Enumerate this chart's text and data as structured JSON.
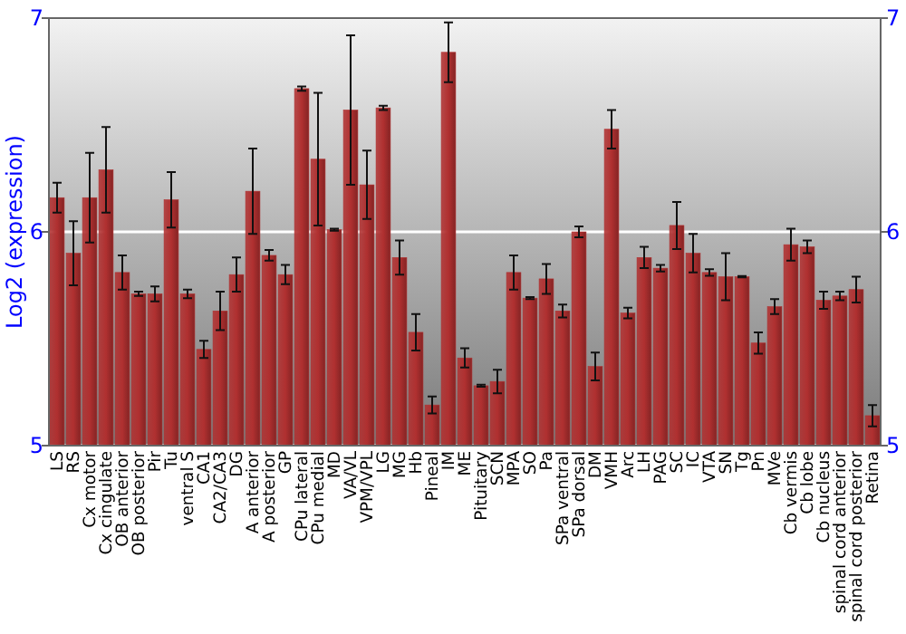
{
  "chart_data": {
    "type": "bar",
    "ylabel": "Log2 (expression)",
    "categories": [
      "LS",
      "RS",
      "Cx motor",
      "Cx cingulate",
      "OB anterior",
      "OB posterior",
      "Pir",
      "Tu",
      "ventral S",
      "CA1",
      "CA2/CA3",
      "DG",
      "A anterior",
      "A posterior",
      "GP",
      "CPu lateral",
      "CPu medial",
      "MD",
      "VA/VL",
      "VPM/VPL",
      "LG",
      "MG",
      "Hb",
      "Pineal",
      "IM",
      "ME",
      "Pituitary",
      "SCN",
      "MPA",
      "SO",
      "Pa",
      "SPa ventral",
      "SPa dorsal",
      "DM",
      "VMH",
      "Arc",
      "LH",
      "PAG",
      "SC",
      "IC",
      "VTA",
      "SN",
      "Tg",
      "Pn",
      "MVe",
      "Cb vermis",
      "Cb lobe",
      "Cb nucleus",
      "spinal cord anterior",
      "spinal cord posterior",
      "Retina"
    ],
    "values": [
      6.16,
      5.9,
      6.16,
      6.29,
      5.81,
      5.71,
      5.71,
      6.15,
      5.71,
      5.45,
      5.63,
      5.8,
      6.19,
      5.89,
      5.8,
      6.67,
      6.34,
      6.01,
      6.57,
      6.22,
      6.58,
      5.88,
      5.53,
      5.19,
      6.84,
      5.41,
      5.28,
      5.3,
      5.81,
      5.69,
      5.78,
      5.63,
      6.0,
      5.37,
      6.48,
      5.62,
      5.88,
      5.83,
      6.03,
      5.9,
      5.81,
      5.79,
      5.79,
      5.48,
      5.65,
      5.94,
      5.93,
      5.68,
      5.7,
      5.73,
      5.14
    ],
    "errors": [
      0.07,
      0.15,
      0.21,
      0.2,
      0.08,
      0.01,
      0.035,
      0.13,
      0.02,
      0.04,
      0.09,
      0.08,
      0.2,
      0.025,
      0.045,
      0.01,
      0.31,
      0.005,
      0.35,
      0.16,
      0.01,
      0.08,
      0.085,
      0.04,
      0.14,
      0.045,
      0.005,
      0.055,
      0.08,
      0.005,
      0.07,
      0.03,
      0.025,
      0.065,
      0.09,
      0.025,
      0.05,
      0.015,
      0.11,
      0.09,
      0.015,
      0.11,
      0.003,
      0.05,
      0.035,
      0.075,
      0.03,
      0.04,
      0.02,
      0.06,
      0.05
    ],
    "color": "#b03030",
    "ylim": [
      5,
      7
    ],
    "yticks": [
      5,
      6,
      7
    ],
    "y2lim": [
      5,
      7
    ],
    "y2ticks": [
      5,
      6,
      7
    ],
    "grid": "y"
  }
}
